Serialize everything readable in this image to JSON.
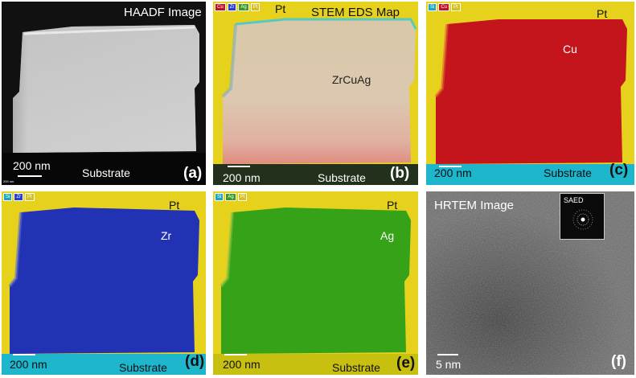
{
  "panels": {
    "a": {
      "title": "HAADF Image",
      "scale": "200 nm",
      "substrate": "Substrate",
      "letter": "(a)",
      "micro_scale": "200 nm"
    },
    "b": {
      "title": "STEM EDS Map",
      "pt": "Pt",
      "material": "ZrCuAg",
      "scale": "200 nm",
      "substrate": "Substrate",
      "letter": "(b)",
      "legend": [
        {
          "label": "Cu",
          "color": "#c0102a"
        },
        {
          "label": "Zr",
          "color": "#2a3fd0"
        },
        {
          "label": "Ag",
          "color": "#3a9a1a"
        },
        {
          "label": "Pt",
          "color": "#d8c020"
        }
      ]
    },
    "c": {
      "pt": "Pt",
      "element": "Cu",
      "scale": "200 nm",
      "substrate": "Substrate",
      "letter": "(c)",
      "legend": [
        {
          "label": "Si",
          "color": "#1aa8c0"
        },
        {
          "label": "Cu",
          "color": "#c0102a"
        },
        {
          "label": "Pt",
          "color": "#d8c020"
        }
      ]
    },
    "d": {
      "pt": "Pt",
      "element": "Zr",
      "scale": "200 nm",
      "substrate": "Substrate",
      "letter": "(d)",
      "legend": [
        {
          "label": "Si",
          "color": "#1aa8c0"
        },
        {
          "label": "Zr",
          "color": "#2a3fd0"
        },
        {
          "label": "Pt",
          "color": "#d8c020"
        }
      ]
    },
    "e": {
      "pt": "Pt",
      "element": "Ag",
      "scale": "200 nm",
      "substrate": "Substrate",
      "letter": "(e)",
      "legend": [
        {
          "label": "Si",
          "color": "#1aa8c0"
        },
        {
          "label": "Ag",
          "color": "#3a9a1a"
        },
        {
          "label": "Pt",
          "color": "#d8c020"
        }
      ]
    },
    "f": {
      "title": "HRTEM Image",
      "saed": "SAED",
      "scale": "5 nm",
      "letter": "(f)"
    }
  },
  "colors": {
    "pt_yellow": "#e6d21c",
    "si_cyan": "#1eb6cc",
    "cu_red": "#c4141c",
    "zr_blue": "#2232b4",
    "ag_green": "#36a218"
  }
}
